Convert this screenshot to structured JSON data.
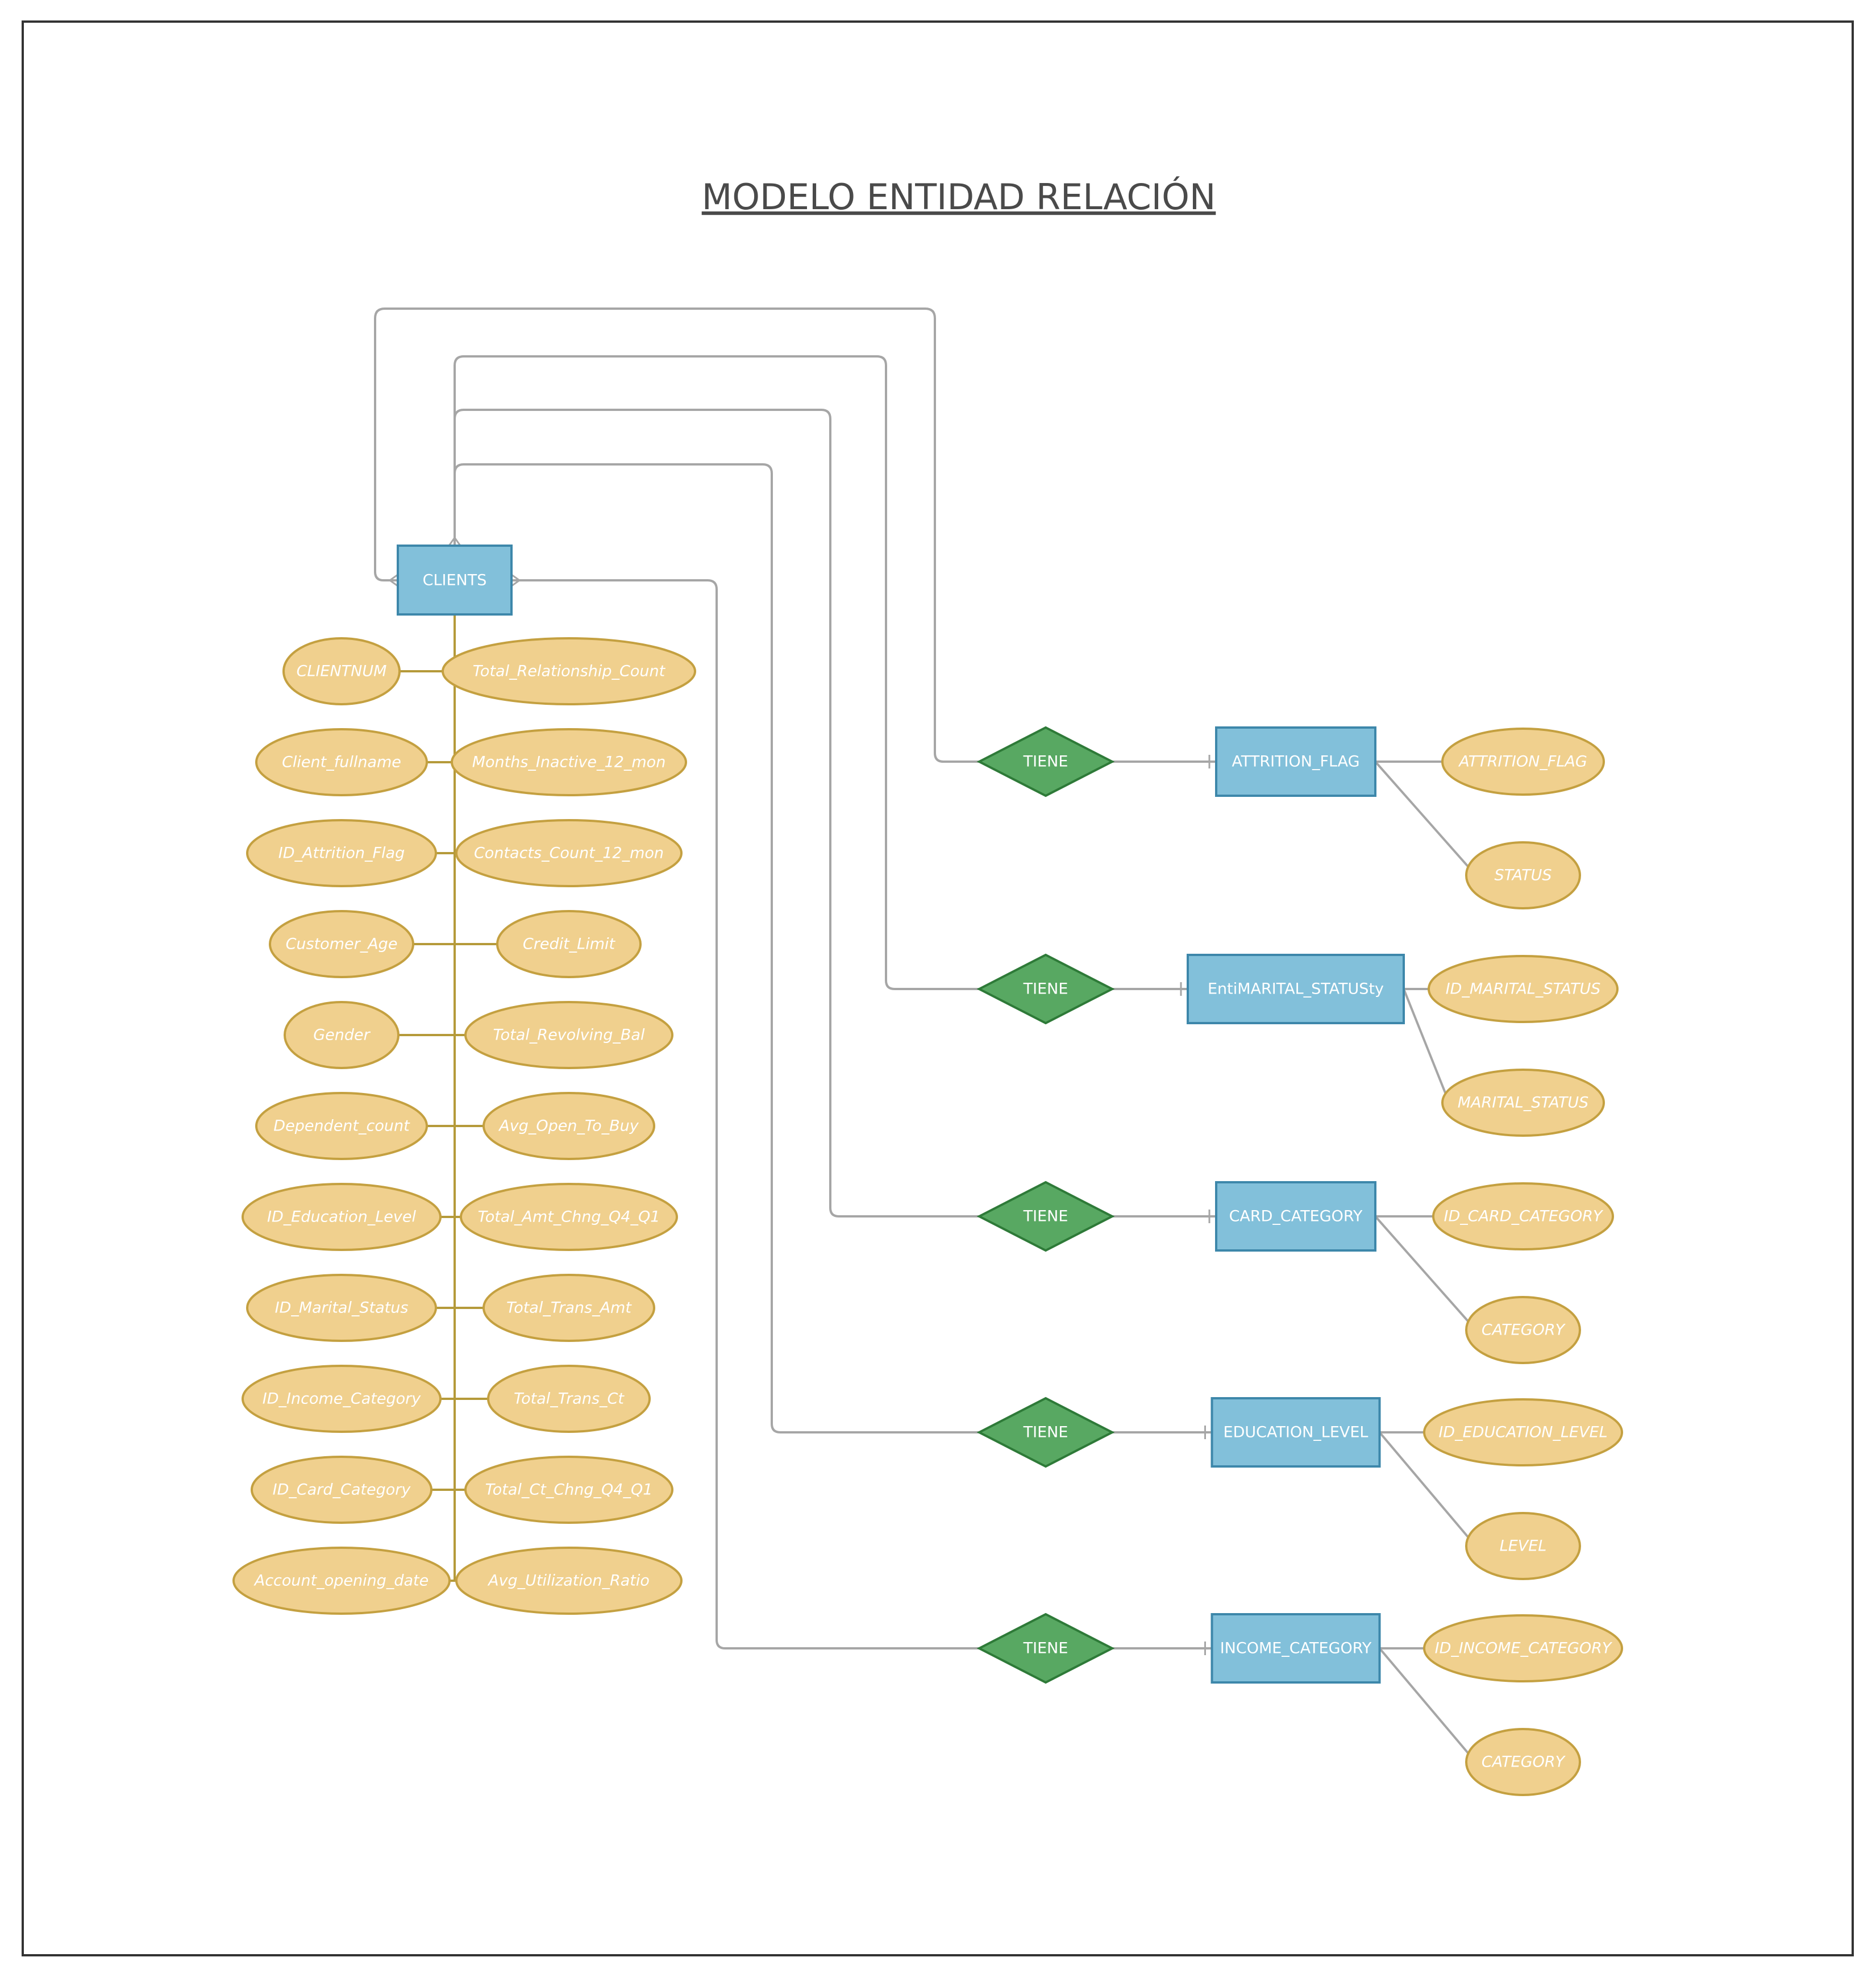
{
  "title": "MODELO ENTIDAD RELACIÓN",
  "colors": {
    "entity_fill": "#82c0da",
    "entity_stroke": "#3d87aa",
    "relationship_fill": "#58a862",
    "attribute_fill": "#f0d08e",
    "attribute_stroke": "#c4a040",
    "connector": "#a6a6a6",
    "title": "#4a4a4a"
  },
  "clients": {
    "name": "CLIENTS",
    "attributes_left": [
      "CLIENTNUM",
      "Client_fullname",
      "ID_Attrition_Flag",
      "Customer_Age",
      "Gender",
      "Dependent_count",
      "ID_Education_Level",
      "ID_Marital_Status",
      "ID_Income_Category",
      "ID_Card_Category",
      "Account_opening_date"
    ],
    "attributes_right": [
      "Total_Relationship_Count",
      "Months_Inactive_12_mon",
      "Contacts_Count_12_mon",
      "Credit_Limit",
      "Total_Revolving_Bal",
      "Avg_Open_To_Buy",
      "Total_Amt_Chng_Q4_Q1",
      "Total_Trans_Amt",
      "Total_Trans_Ct",
      "Total_Ct_Chng_Q4_Q1",
      "Avg_Utilization_Ratio"
    ]
  },
  "relations": [
    {
      "relationship": "TIENE",
      "entity": "ATTRITION_FLAG",
      "attributes": [
        "ATTRITION_FLAG",
        "STATUS"
      ]
    },
    {
      "relationship": "TIENE",
      "entity": "EntiMARITAL_STATUSty",
      "attributes": [
        "ID_MARITAL_STATUS",
        "MARITAL_STATUS"
      ]
    },
    {
      "relationship": "TIENE",
      "entity": "CARD_CATEGORY",
      "attributes": [
        "ID_CARD_CATEGORY",
        "CATEGORY"
      ]
    },
    {
      "relationship": "TIENE",
      "entity": "EDUCATION_LEVEL",
      "attributes": [
        "ID_EDUCATION_LEVEL",
        "LEVEL"
      ]
    },
    {
      "relationship": "TIENE",
      "entity": "INCOME_CATEGORY",
      "attributes": [
        "ID_INCOME_CATEGORY",
        "CATEGORY"
      ]
    }
  ]
}
